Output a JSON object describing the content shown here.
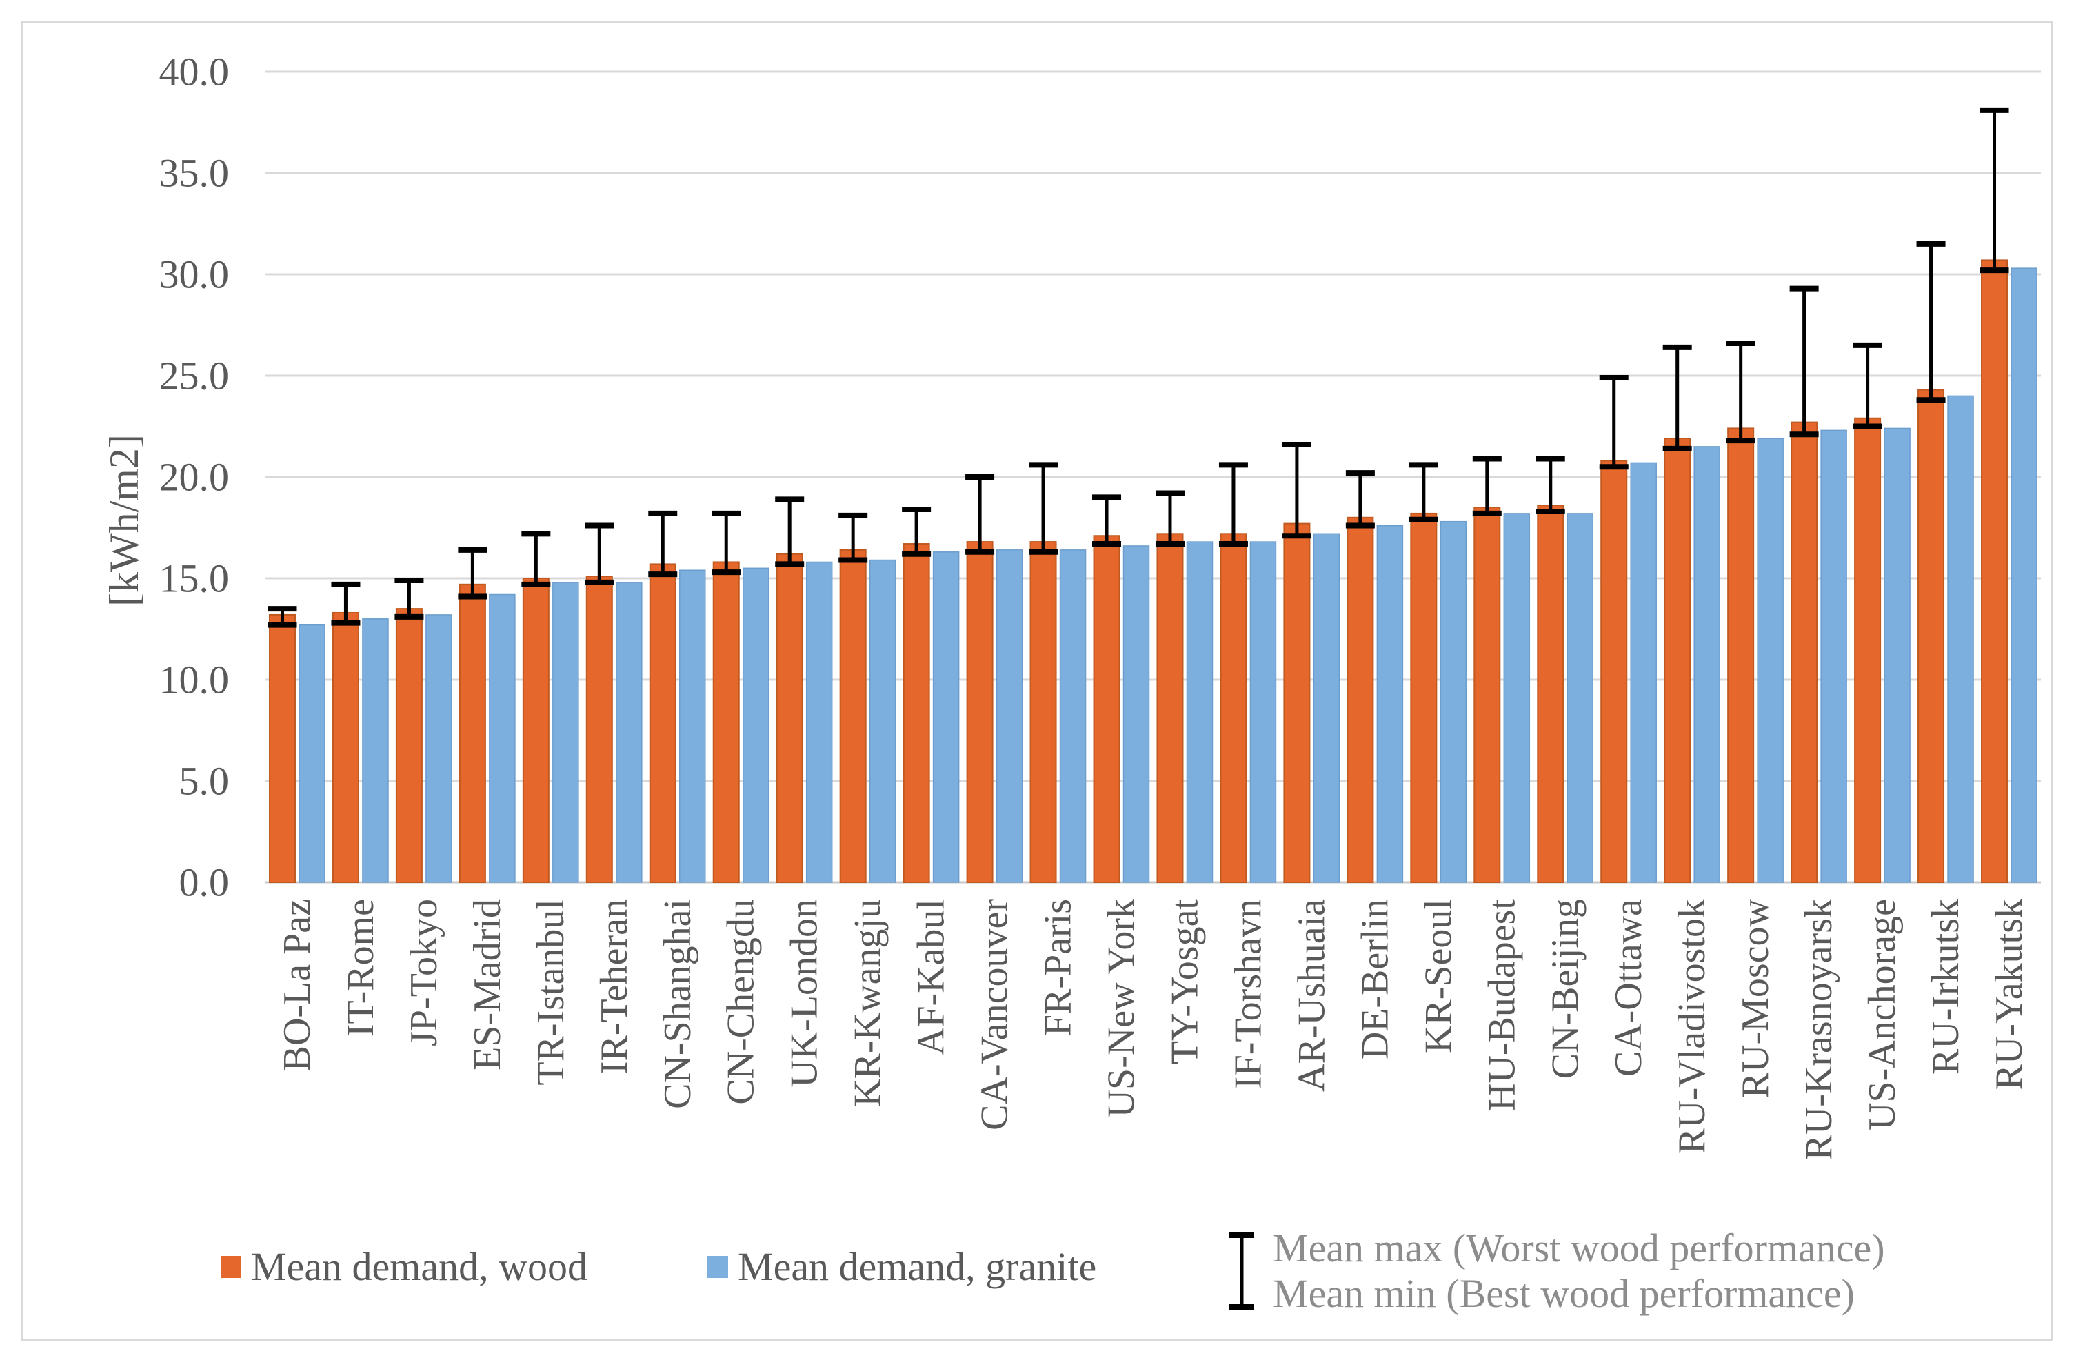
{
  "chart_data": {
    "type": "bar",
    "title": "",
    "xlabel": "",
    "ylabel": "[kWh/m2]",
    "ylim": [
      0,
      40
    ],
    "ytick_step": 5,
    "ytick_labels": [
      "0.0",
      "5.0",
      "10.0",
      "15.0",
      "20.0",
      "25.0",
      "30.0",
      "35.0",
      "40.0"
    ],
    "grid": true,
    "legend_position": "bottom",
    "categories": [
      "BO-La Paz",
      "IT-Rome",
      "JP-Tokyo",
      "ES-Madrid",
      "TR-Istanbul",
      "IR-Teheran",
      "CN-Shanghai",
      "CN-Chengdu",
      "UK-London",
      "KR-Kwangju",
      "AF-Kabul",
      "CA-Vancouver",
      "FR-Paris",
      "US-New York",
      "TY-Yosgat",
      "IF-Torshavn",
      "AR-Ushuaia",
      "DE-Berlin",
      "KR-Seoul",
      "HU-Budapest",
      "CN-Beijing",
      "CA-Ottawa",
      "RU-Vladivostok",
      "RU-Moscow",
      "RU-Krasnoyarsk",
      "US-Anchorage",
      "RU-Irkutsk",
      "RU-Yakutsk"
    ],
    "series": [
      {
        "name": "Mean demand, wood",
        "color": "#e5672b",
        "edge_color": "#c05a20",
        "values": [
          13.2,
          13.3,
          13.5,
          14.7,
          15.0,
          15.1,
          15.7,
          15.8,
          16.2,
          16.4,
          16.7,
          16.8,
          16.8,
          17.1,
          17.2,
          17.2,
          17.7,
          18.0,
          18.2,
          18.5,
          18.6,
          20.8,
          21.9,
          22.4,
          22.7,
          22.9,
          24.3,
          30.7
        ]
      },
      {
        "name": "Mean demand, granite",
        "color": "#7caede",
        "edge_color": "#6b9dcd",
        "values": [
          12.7,
          13.0,
          13.2,
          14.2,
          14.8,
          14.8,
          15.4,
          15.5,
          15.8,
          15.9,
          16.3,
          16.4,
          16.4,
          16.6,
          16.8,
          16.8,
          17.2,
          17.6,
          17.8,
          18.2,
          18.2,
          20.7,
          21.5,
          21.9,
          22.3,
          22.4,
          24.0,
          30.3
        ]
      }
    ],
    "error_bars": {
      "attached_to_series": "Mean demand, wood",
      "color": "#000000",
      "max_label": "Mean max (Worst wood performance)",
      "min_label": "Mean min (Best wood performance)",
      "max": [
        13.5,
        14.7,
        14.9,
        16.4,
        17.2,
        17.6,
        18.2,
        18.2,
        18.9,
        18.1,
        18.4,
        20.0,
        20.6,
        19.0,
        19.2,
        20.6,
        21.6,
        20.2,
        20.6,
        20.9,
        20.9,
        24.9,
        26.4,
        26.6,
        29.3,
        26.5,
        31.5,
        38.1
      ],
      "min": [
        12.7,
        12.8,
        13.1,
        14.1,
        14.7,
        14.8,
        15.2,
        15.3,
        15.7,
        15.9,
        16.2,
        16.3,
        16.3,
        16.7,
        16.7,
        16.7,
        17.1,
        17.6,
        17.9,
        18.2,
        18.3,
        20.5,
        21.4,
        21.8,
        22.1,
        22.5,
        23.8,
        30.2
      ]
    }
  },
  "styles": {
    "background": "#ffffff",
    "frame_border_color": "#d9d9d9",
    "gridline_color": "#d9d9d9",
    "axis_line_color": "#c9c9c9",
    "tick_label_color": "#595959",
    "category_label_color": "#595959",
    "axis_title_color": "#595959",
    "legend_text_color": "#595959",
    "error_legend_text_color": "#8c8c8c",
    "error_bar_color": "#000000"
  }
}
